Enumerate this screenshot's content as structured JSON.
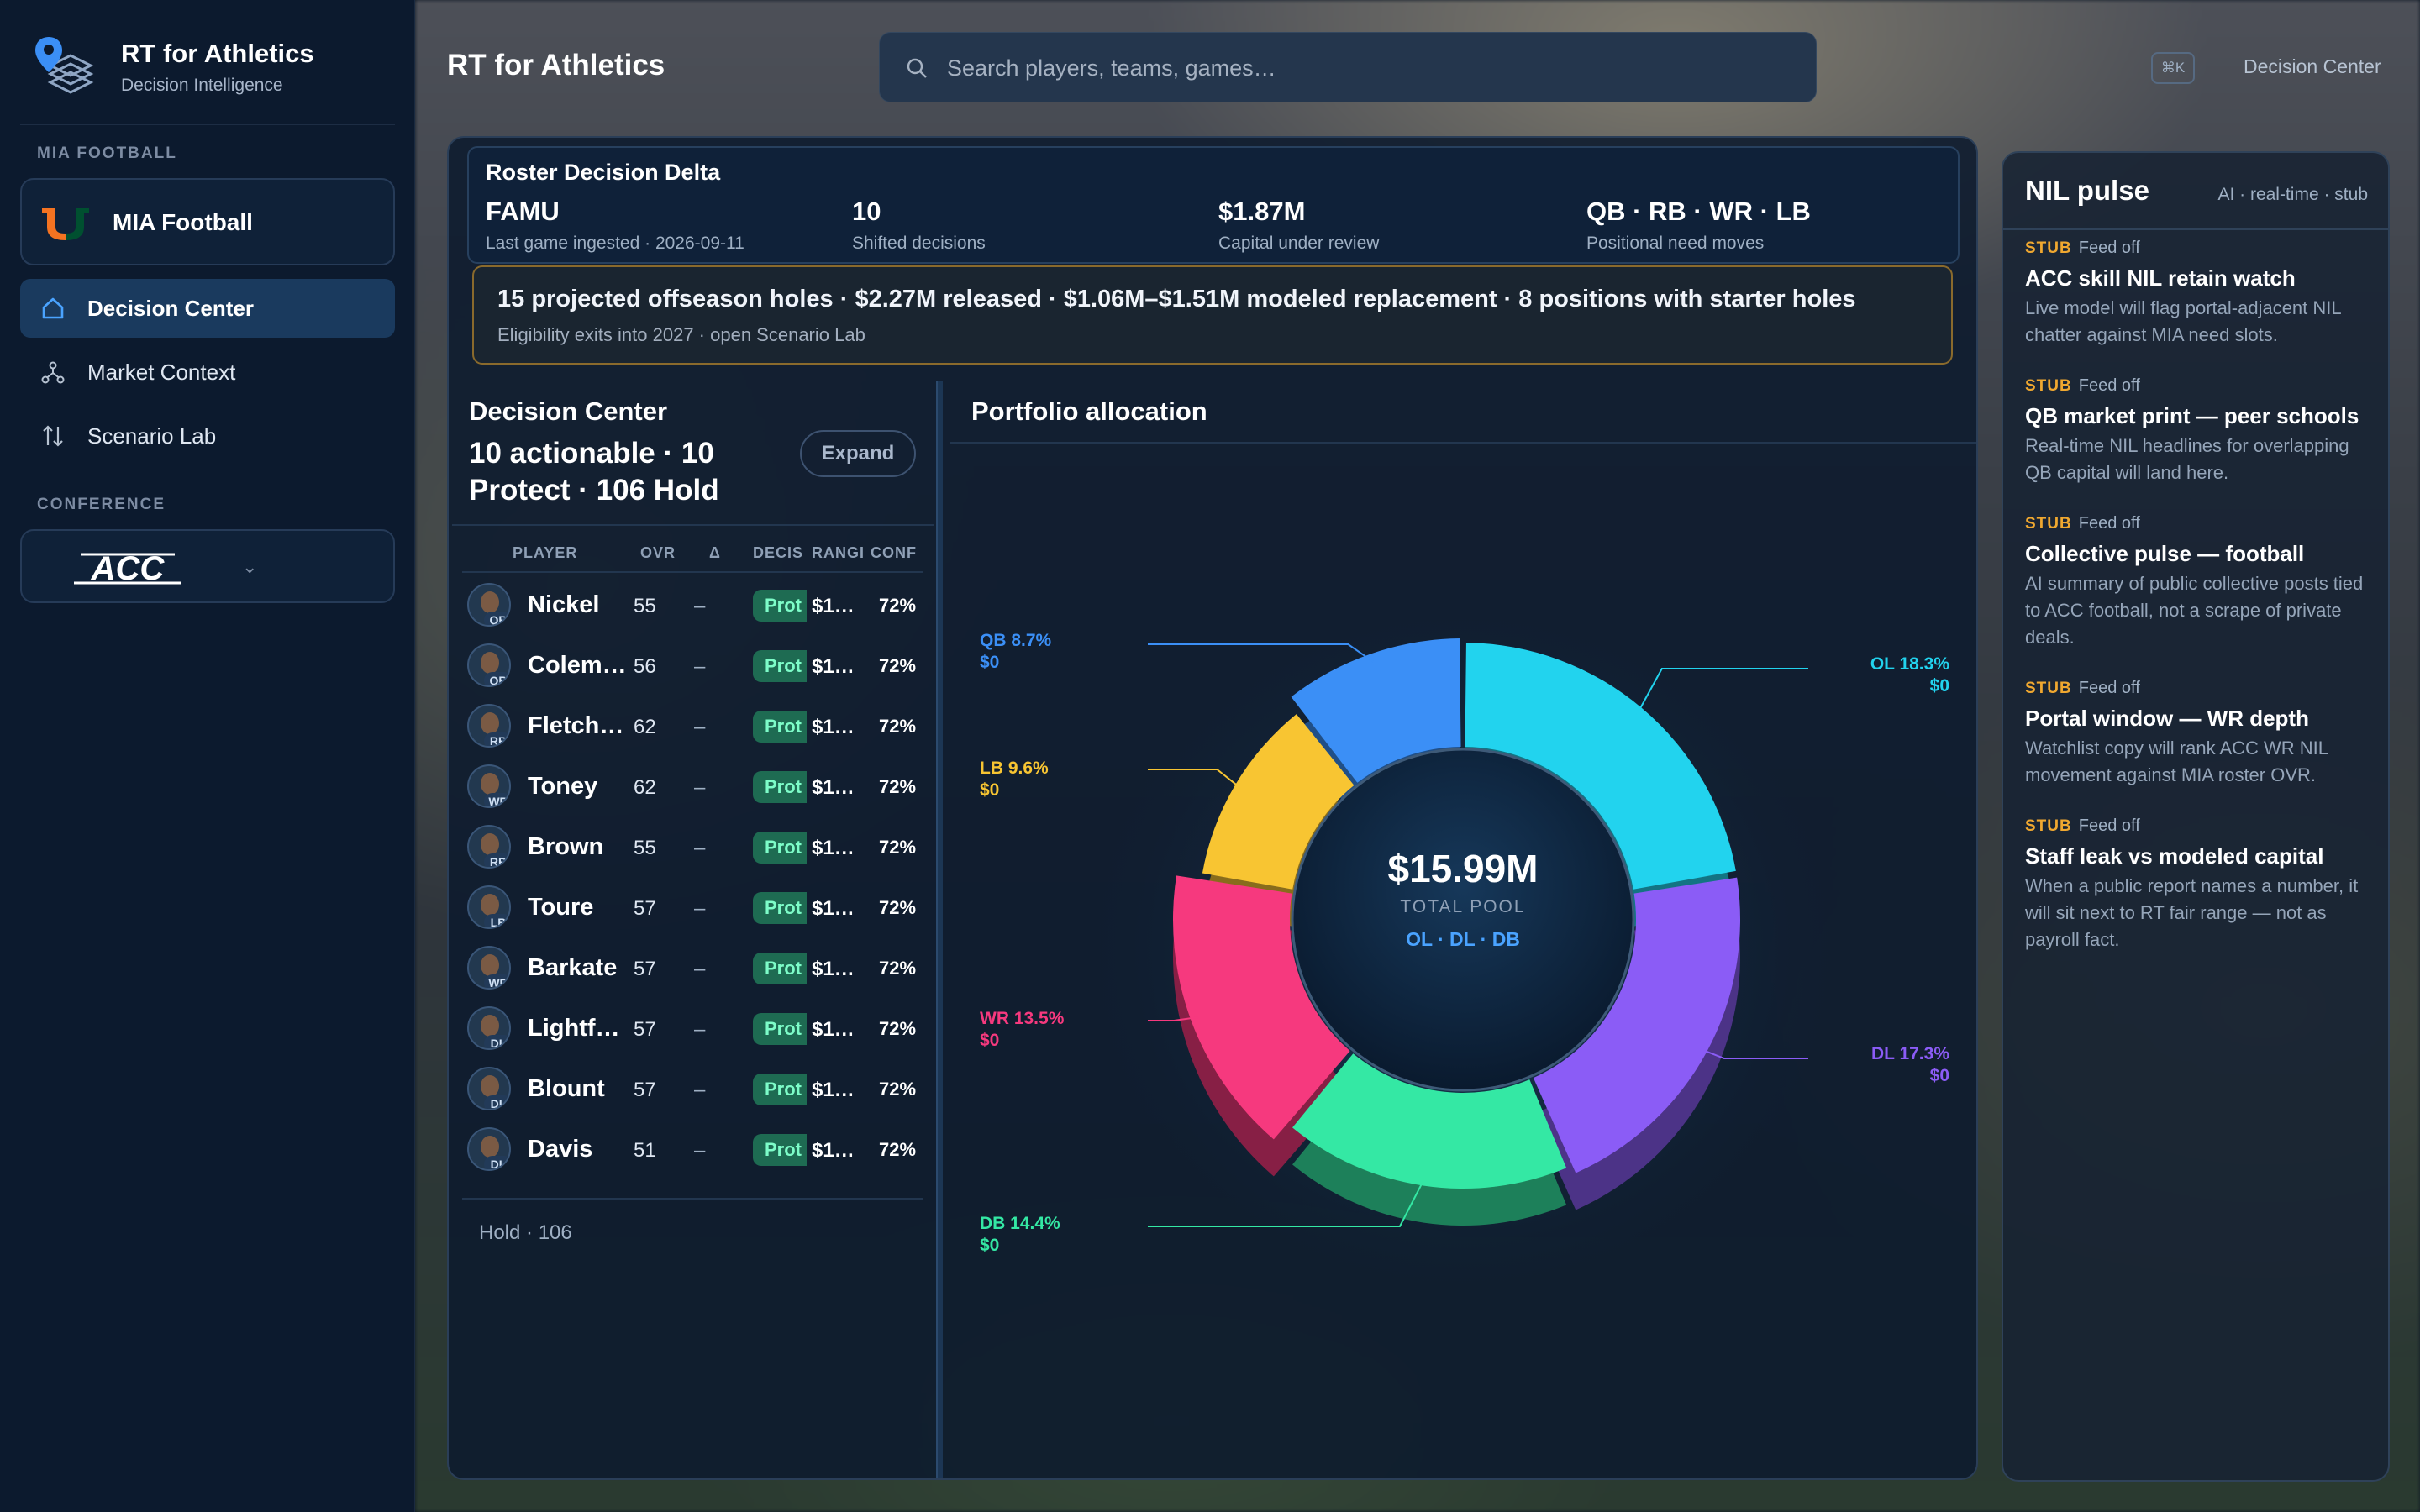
{
  "brand": {
    "title": "RT for Athletics",
    "subtitle": "Decision Intelligence"
  },
  "sidebar": {
    "team_section_label": "MIA FOOTBALL",
    "team_name": "MIA Football",
    "nav": [
      {
        "label": "Decision Center",
        "icon": "home-icon",
        "active": true
      },
      {
        "label": "Market Context",
        "icon": "network-icon",
        "active": false
      },
      {
        "label": "Scenario Lab",
        "icon": "sort-arrows-icon",
        "active": false
      }
    ],
    "conference_label": "CONFERENCE",
    "conference_name": "ACC"
  },
  "header": {
    "title": "RT for Athletics",
    "search_placeholder": "Search players, teams, games…",
    "shortcut": "⌘K",
    "link": "Decision Center"
  },
  "delta": {
    "title": "Roster Decision Delta",
    "metrics": [
      {
        "value": "FAMU",
        "label": "Last game ingested · 2026-09-11"
      },
      {
        "value": "10",
        "label": "Shifted decisions"
      },
      {
        "value": "$1.87M",
        "label": "Capital under review"
      },
      {
        "value": "QB · RB · WR · LB",
        "label": "Positional need moves"
      }
    ]
  },
  "holes": {
    "main": "15 projected offseason holes · $2.27M released · $1.06M–$1.51M modeled replacement · 8 positions with starter holes",
    "sub": "Eligibility exits into 2027 · open Scenario Lab"
  },
  "decision_center": {
    "title": "Decision Center",
    "summary": "10 actionable · 10 Protect · 106 Hold",
    "expand_label": "Expand",
    "columns": [
      "PLAYER",
      "OVR",
      "Δ",
      "DECIS",
      "RANGI",
      "CONF"
    ],
    "rows": [
      {
        "name": "Nickel",
        "pos": "QB",
        "ovr": "55",
        "delta": "–",
        "decision": "Prot",
        "range": "$1…",
        "conf": "72%"
      },
      {
        "name": "Colem…",
        "pos": "QB",
        "ovr": "56",
        "delta": "–",
        "decision": "Prot",
        "range": "$1…",
        "conf": "72%"
      },
      {
        "name": "Fletch…",
        "pos": "RB",
        "ovr": "62",
        "delta": "–",
        "decision": "Prot",
        "range": "$1…",
        "conf": "72%"
      },
      {
        "name": "Toney",
        "pos": "WR",
        "ovr": "62",
        "delta": "–",
        "decision": "Prot",
        "range": "$1…",
        "conf": "72%"
      },
      {
        "name": "Brown",
        "pos": "RB",
        "ovr": "55",
        "delta": "–",
        "decision": "Prot",
        "range": "$1…",
        "conf": "72%"
      },
      {
        "name": "Toure",
        "pos": "LB",
        "ovr": "57",
        "delta": "–",
        "decision": "Prot",
        "range": "$1…",
        "conf": "72%"
      },
      {
        "name": "Barkate",
        "pos": "WR",
        "ovr": "57",
        "delta": "–",
        "decision": "Prot",
        "range": "$1…",
        "conf": "72%"
      },
      {
        "name": "Lightf…",
        "pos": "DL",
        "ovr": "57",
        "delta": "–",
        "decision": "Prot",
        "range": "$1…",
        "conf": "72%"
      },
      {
        "name": "Blount",
        "pos": "DL",
        "ovr": "57",
        "delta": "–",
        "decision": "Prot",
        "range": "$1…",
        "conf": "72%"
      },
      {
        "name": "Davis",
        "pos": "DL",
        "ovr": "51",
        "delta": "–",
        "decision": "Prot",
        "range": "$1…",
        "conf": "72%"
      }
    ],
    "footer": "Hold · 106"
  },
  "portfolio": {
    "title": "Portfolio allocation",
    "center_value": "$15.99M",
    "center_label": "TOTAL POOL",
    "center_focus": "OL · DL · DB"
  },
  "chart_data": {
    "type": "pie",
    "title": "Portfolio allocation",
    "slices": [
      {
        "name": "OL",
        "label": "OL 18.3%",
        "amount": "$0",
        "value": 18.3,
        "color": "#22d3ee"
      },
      {
        "name": "DL",
        "label": "DL 17.3%",
        "amount": "$0",
        "value": 17.3,
        "color": "#8b5cf6"
      },
      {
        "name": "DB",
        "label": "DB 14.4%",
        "amount": "$0",
        "value": 14.4,
        "color": "#34e8a4"
      },
      {
        "name": "WR",
        "label": "WR 13.5%",
        "amount": "$0",
        "value": 13.5,
        "color": "#f6397e"
      },
      {
        "name": "LB",
        "label": "LB 9.6%",
        "amount": "$0",
        "value": 9.6,
        "color": "#f8c532"
      },
      {
        "name": "QB",
        "label": "QB 8.7%",
        "amount": "$0",
        "value": 8.7,
        "color": "#3b8ff6"
      }
    ]
  },
  "nil": {
    "title": "NIL pulse",
    "meta": "AI · real-time · stub",
    "items": [
      {
        "tag": "STUB",
        "feed": "Feed off",
        "headline": "ACC skill NIL retain watch",
        "body": "Live model will flag portal-adjacent NIL chatter against MIA need slots."
      },
      {
        "tag": "STUB",
        "feed": "Feed off",
        "headline": "QB market print — peer schools",
        "body": "Real-time NIL headlines for overlapping QB capital will land here."
      },
      {
        "tag": "STUB",
        "feed": "Feed off",
        "headline": "Collective pulse — football",
        "body": "AI summary of public collective posts tied to ACC football, not a scrape of private deals."
      },
      {
        "tag": "STUB",
        "feed": "Feed off",
        "headline": "Portal window — WR depth",
        "body": "Watchlist copy will rank ACC WR NIL movement against MIA roster OVR."
      },
      {
        "tag": "STUB",
        "feed": "Feed off",
        "headline": "Staff leak vs modeled capital",
        "body": "When a public report names a number, it will sit next to RT fair range — not as payroll fact."
      }
    ]
  }
}
